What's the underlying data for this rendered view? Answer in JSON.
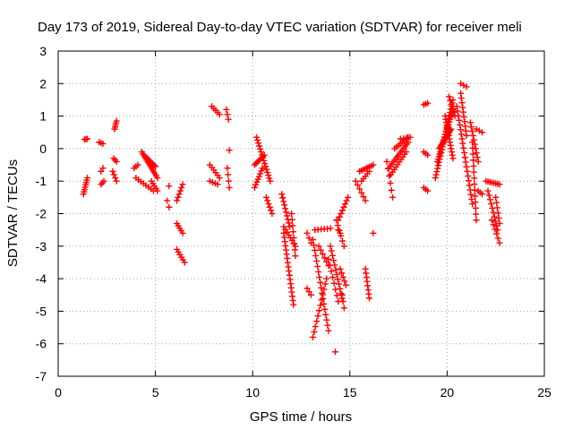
{
  "chart_data": {
    "type": "scatter",
    "title": "Day 173 of 2019, Sidereal Day-to-day VTEC variation (SDTVAR) for receiver meli",
    "xlabel": "GPS time / hours",
    "ylabel": "SDTVAR / TECUs",
    "xlim": [
      0,
      25
    ],
    "ylim": [
      -7,
      3
    ],
    "xticks": [
      "0",
      "5",
      "10",
      "15",
      "20",
      "25"
    ],
    "yticks": [
      "-7",
      "-6",
      "-5",
      "-4",
      "-3",
      "-2",
      "-1",
      "0",
      "1",
      "2",
      "3"
    ],
    "grid": true,
    "marker": "plus",
    "color": "#ff0000",
    "segments": [
      {
        "x0": 1.3,
        "y0": -1.4,
        "x1": 1.5,
        "y1": -0.9,
        "n": 8
      },
      {
        "x0": 1.35,
        "y0": 0.28,
        "x1": 1.5,
        "y1": 0.3,
        "n": 3
      },
      {
        "x0": 2.1,
        "y0": 0.2,
        "x1": 2.3,
        "y1": 0.15,
        "n": 3
      },
      {
        "x0": 2.2,
        "y0": -0.7,
        "x1": 2.3,
        "y1": -0.6,
        "n": 2
      },
      {
        "x0": 2.2,
        "y0": -1.1,
        "x1": 2.35,
        "y1": -1.0,
        "n": 3
      },
      {
        "x0": 2.9,
        "y0": 0.6,
        "x1": 3.0,
        "y1": 0.85,
        "n": 5
      },
      {
        "x0": 2.85,
        "y0": -0.3,
        "x1": 3.0,
        "y1": -0.4,
        "n": 3
      },
      {
        "x0": 2.8,
        "y0": -0.7,
        "x1": 3.0,
        "y1": -1.0,
        "n": 4
      },
      {
        "x0": 3.9,
        "y0": -0.6,
        "x1": 4.1,
        "y1": -0.5,
        "n": 3
      },
      {
        "x0": 4.0,
        "y0": -0.9,
        "x1": 4.9,
        "y1": -1.3,
        "n": 8
      },
      {
        "x0": 4.3,
        "y0": -0.1,
        "x1": 5.1,
        "y1": -0.9,
        "n": 14
      },
      {
        "x0": 4.5,
        "y0": -0.25,
        "x1": 5.0,
        "y1": -0.55,
        "n": 8
      },
      {
        "x0": 4.8,
        "y0": -1.0,
        "x1": 5.1,
        "y1": -1.3,
        "n": 5
      },
      {
        "x0": 5.6,
        "y0": -1.6,
        "x1": 5.7,
        "y1": -1.8,
        "n": 2
      },
      {
        "x0": 5.7,
        "y0": -1.15,
        "x1": 5.7,
        "y1": -1.15,
        "n": 1
      },
      {
        "x0": 6.1,
        "y0": -1.6,
        "x1": 6.4,
        "y1": -1.1,
        "n": 6
      },
      {
        "x0": 6.1,
        "y0": -2.3,
        "x1": 6.4,
        "y1": -2.6,
        "n": 5
      },
      {
        "x0": 6.1,
        "y0": -3.1,
        "x1": 6.5,
        "y1": -3.5,
        "n": 6
      },
      {
        "x0": 7.9,
        "y0": 1.3,
        "x1": 8.3,
        "y1": 1.05,
        "n": 5
      },
      {
        "x0": 7.8,
        "y0": -0.5,
        "x1": 8.3,
        "y1": -0.9,
        "n": 6
      },
      {
        "x0": 7.8,
        "y0": -1.0,
        "x1": 8.2,
        "y1": -1.1,
        "n": 4
      },
      {
        "x0": 8.65,
        "y0": 1.2,
        "x1": 8.75,
        "y1": 0.9,
        "n": 3
      },
      {
        "x0": 8.7,
        "y0": -0.6,
        "x1": 8.8,
        "y1": -1.2,
        "n": 4
      },
      {
        "x0": 8.8,
        "y0": -0.05,
        "x1": 8.8,
        "y1": -0.05,
        "n": 1
      },
      {
        "x0": 10.2,
        "y0": 0.35,
        "x1": 10.9,
        "y1": -1.0,
        "n": 16
      },
      {
        "x0": 10.1,
        "y0": -0.5,
        "x1": 10.6,
        "y1": -0.2,
        "n": 8
      },
      {
        "x0": 10.1,
        "y0": -1.2,
        "x1": 10.5,
        "y1": -0.6,
        "n": 8
      },
      {
        "x0": 10.7,
        "y0": -1.5,
        "x1": 11.0,
        "y1": -2.0,
        "n": 6
      },
      {
        "x0": 11.5,
        "y0": -1.4,
        "x1": 11.9,
        "y1": -2.4,
        "n": 10
      },
      {
        "x0": 11.6,
        "y0": -2.4,
        "x1": 12.2,
        "y1": -3.0,
        "n": 8
      },
      {
        "x0": 11.6,
        "y0": -2.6,
        "x1": 12.1,
        "y1": -4.8,
        "n": 18
      },
      {
        "x0": 12.0,
        "y0": -2.0,
        "x1": 12.2,
        "y1": -3.3,
        "n": 8
      },
      {
        "x0": 12.8,
        "y0": -2.6,
        "x1": 13.0,
        "y1": -2.9,
        "n": 3
      },
      {
        "x0": 12.8,
        "y0": -4.3,
        "x1": 13.0,
        "y1": -4.5,
        "n": 3
      },
      {
        "x0": 13.1,
        "y0": -2.8,
        "x1": 13.9,
        "y1": -5.6,
        "n": 18
      },
      {
        "x0": 13.1,
        "y0": -5.8,
        "x1": 13.8,
        "y1": -4.0,
        "n": 12
      },
      {
        "x0": 13.4,
        "y0": -3.0,
        "x1": 13.9,
        "y1": -3.6,
        "n": 6
      },
      {
        "x0": 13.2,
        "y0": -2.5,
        "x1": 14.0,
        "y1": -2.45,
        "n": 6
      },
      {
        "x0": 14.0,
        "y0": -3.0,
        "x1": 14.6,
        "y1": -4.6,
        "n": 12
      },
      {
        "x0": 13.9,
        "y0": -3.4,
        "x1": 14.4,
        "y1": -4.7,
        "n": 8
      },
      {
        "x0": 14.3,
        "y0": -2.2,
        "x1": 14.7,
        "y1": -3.0,
        "n": 6
      },
      {
        "x0": 14.4,
        "y0": -2.5,
        "x1": 14.5,
        "y1": -2.6,
        "n": 2
      },
      {
        "x0": 14.25,
        "y0": -6.25,
        "x1": 14.25,
        "y1": -6.25,
        "n": 1
      },
      {
        "x0": 14.4,
        "y0": -2.2,
        "x1": 14.9,
        "y1": -1.5,
        "n": 8
      },
      {
        "x0": 14.5,
        "y0": -3.7,
        "x1": 14.8,
        "y1": -4.2,
        "n": 5
      },
      {
        "x0": 14.6,
        "y0": -4.5,
        "x1": 14.7,
        "y1": -4.9,
        "n": 3
      },
      {
        "x0": 15.5,
        "y0": -0.7,
        "x1": 16.2,
        "y1": -0.5,
        "n": 8
      },
      {
        "x0": 15.3,
        "y0": -1.0,
        "x1": 15.8,
        "y1": -1.6,
        "n": 6
      },
      {
        "x0": 15.6,
        "y0": -1.0,
        "x1": 16.0,
        "y1": -0.7,
        "n": 5
      },
      {
        "x0": 15.8,
        "y0": -3.7,
        "x1": 16.0,
        "y1": -4.6,
        "n": 8
      },
      {
        "x0": 16.2,
        "y0": -2.6,
        "x1": 16.2,
        "y1": -2.6,
        "n": 1
      },
      {
        "x0": 16.9,
        "y0": -0.4,
        "x1": 17.2,
        "y1": -1.5,
        "n": 6
      },
      {
        "x0": 17.0,
        "y0": -0.6,
        "x1": 18.0,
        "y1": 0.2,
        "n": 14
      },
      {
        "x0": 17.1,
        "y0": -0.8,
        "x1": 17.9,
        "y1": -0.1,
        "n": 10
      },
      {
        "x0": 17.3,
        "y0": 0.0,
        "x1": 18.0,
        "y1": 0.35,
        "n": 8
      },
      {
        "x0": 17.6,
        "y0": 0.3,
        "x1": 18.1,
        "y1": 0.35,
        "n": 4
      },
      {
        "x0": 18.8,
        "y0": 1.35,
        "x1": 19.0,
        "y1": 1.4,
        "n": 3
      },
      {
        "x0": 18.8,
        "y0": -1.2,
        "x1": 19.0,
        "y1": -1.3,
        "n": 3
      },
      {
        "x0": 18.8,
        "y0": -0.1,
        "x1": 19.0,
        "y1": -0.2,
        "n": 3
      },
      {
        "x0": 19.4,
        "y0": -0.9,
        "x1": 20.3,
        "y1": 1.5,
        "n": 26
      },
      {
        "x0": 19.5,
        "y0": -0.4,
        "x1": 20.3,
        "y1": 1.2,
        "n": 22
      },
      {
        "x0": 19.6,
        "y0": 0.0,
        "x1": 20.2,
        "y1": 0.6,
        "n": 16
      },
      {
        "x0": 19.9,
        "y0": 1.0,
        "x1": 20.3,
        "y1": -0.3,
        "n": 14
      },
      {
        "x0": 20.1,
        "y0": 1.6,
        "x1": 20.4,
        "y1": 1.0,
        "n": 6
      },
      {
        "x0": 20.7,
        "y0": 2.0,
        "x1": 21.0,
        "y1": 1.9,
        "n": 3
      },
      {
        "x0": 20.5,
        "y0": 1.3,
        "x1": 21.3,
        "y1": -1.7,
        "n": 22
      },
      {
        "x0": 20.7,
        "y0": 1.7,
        "x1": 21.0,
        "y1": 0.4,
        "n": 10
      },
      {
        "x0": 21.2,
        "y0": 0.8,
        "x1": 21.6,
        "y1": -0.4,
        "n": 10
      },
      {
        "x0": 21.3,
        "y0": 0.2,
        "x1": 21.5,
        "y1": -2.2,
        "n": 14
      },
      {
        "x0": 21.5,
        "y0": 0.6,
        "x1": 21.8,
        "y1": 0.5,
        "n": 3
      },
      {
        "x0": 21.6,
        "y0": -1.3,
        "x1": 21.8,
        "y1": -1.4,
        "n": 3
      },
      {
        "x0": 22.0,
        "y0": -1.0,
        "x1": 22.7,
        "y1": -1.1,
        "n": 8
      },
      {
        "x0": 22.1,
        "y0": -1.3,
        "x1": 22.6,
        "y1": -2.5,
        "n": 10
      },
      {
        "x0": 22.3,
        "y0": -2.2,
        "x1": 22.7,
        "y1": -2.9,
        "n": 6
      },
      {
        "x0": 22.5,
        "y0": -1.5,
        "x1": 22.7,
        "y1": -2.3,
        "n": 6
      }
    ]
  }
}
